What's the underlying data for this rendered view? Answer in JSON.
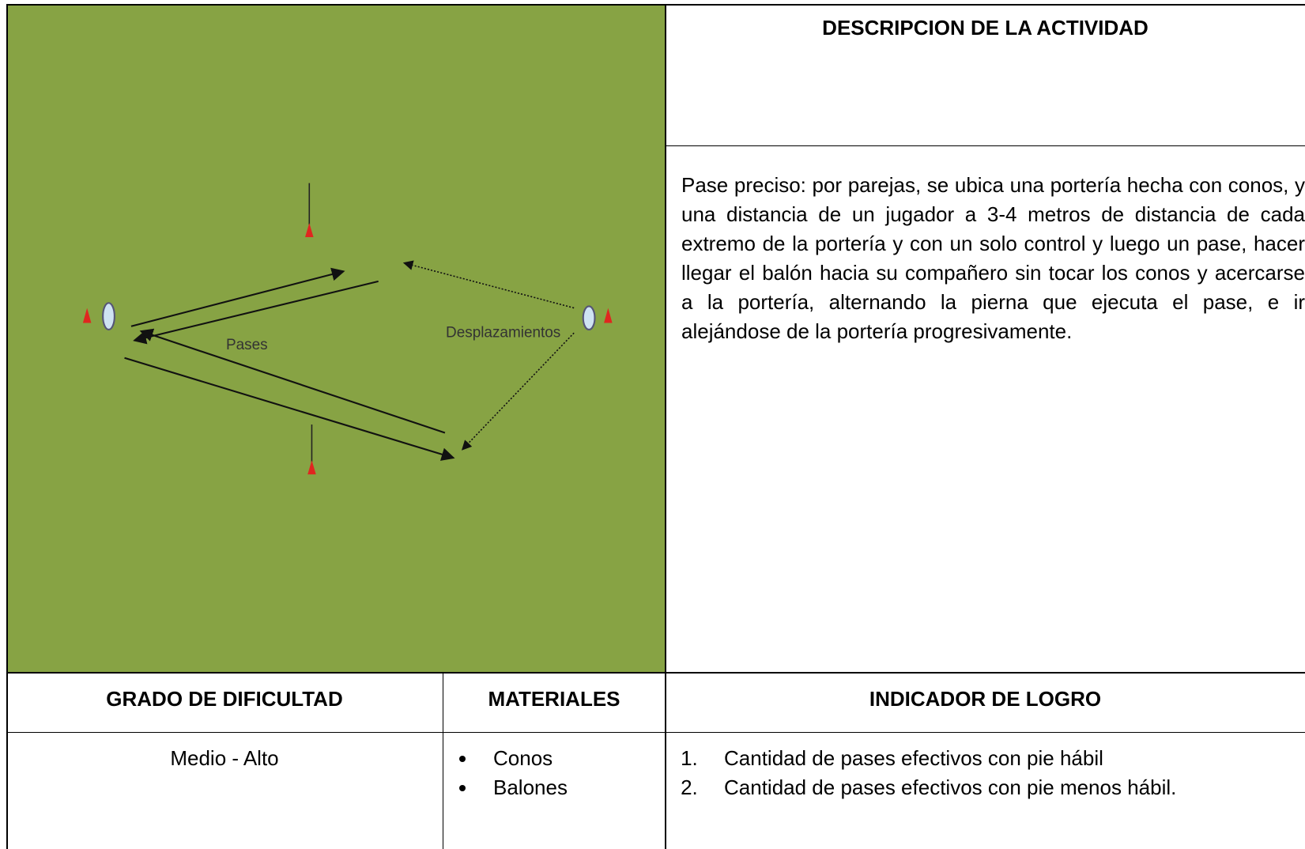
{
  "diagram": {
    "labels": [
      "Pases",
      "Desplazamientos"
    ]
  },
  "description": {
    "title": "DESCRIPCION DE LA ACTIVIDAD",
    "text": "Pase preciso: por parejas, se ubica una portería hecha con conos, y una distancia de un jugador a 3-4 metros de distancia de cada extremo de la portería y con un solo control y luego un pase, hacer llegar el balón hacia su compañero sin tocar los conos y acercarse a la portería, alternando la pierna que ejecuta el pase, e ir alejándose de la portería progresivamente."
  },
  "table": {
    "headers": [
      "GRADO DE DIFICULTAD",
      "MATERIALES",
      "INDICADOR DE LOGRO"
    ],
    "difficulty": "Medio - Alto",
    "materials": [
      "Conos",
      "Balones"
    ],
    "indicators": [
      "Cantidad de pases efectivos con pie hábil",
      "Cantidad de pases efectivos con pie menos hábil."
    ]
  }
}
